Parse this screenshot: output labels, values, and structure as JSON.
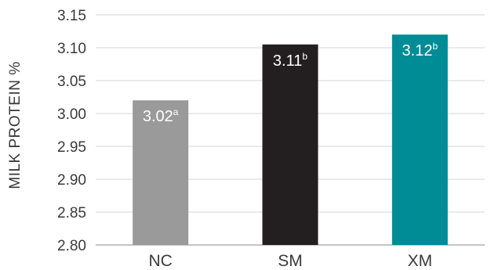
{
  "chart_data": {
    "type": "bar",
    "title": "",
    "xlabel": "",
    "ylabel": "MILK PROTEIN %",
    "ylim": [
      2.8,
      3.15
    ],
    "yticks": [
      "2.80",
      "2.85",
      "2.90",
      "2.95",
      "3.00",
      "3.05",
      "3.10",
      "3.15"
    ],
    "grid": true,
    "categories": [
      "NC",
      "SM",
      "XM"
    ],
    "values": [
      3.02,
      3.105,
      3.12
    ],
    "data_labels": [
      {
        "value": "3.02",
        "superscript": "a"
      },
      {
        "value": "3.11",
        "superscript": "b"
      },
      {
        "value": "3.12",
        "superscript": "b"
      }
    ],
    "colors": [
      "#9a9a9a",
      "#231f20",
      "#008c95"
    ]
  }
}
